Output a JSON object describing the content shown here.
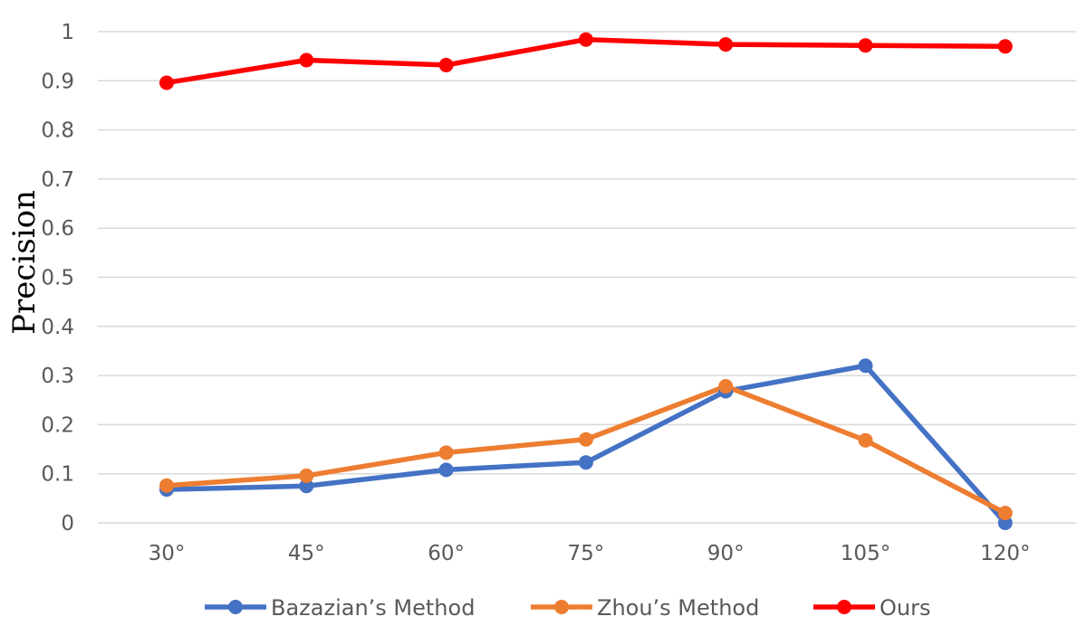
{
  "chart_data": {
    "type": "line",
    "title": "",
    "xlabel": "",
    "ylabel": "Precision",
    "categories": [
      "30°",
      "45°",
      "60°",
      "75°",
      "90°",
      "105°",
      "120°"
    ],
    "ylim": [
      0,
      1
    ],
    "yticks": [
      "0",
      "0.1",
      "0.2",
      "0.3",
      "0.4",
      "0.5",
      "0.6",
      "0.7",
      "0.8",
      "0.9",
      "1"
    ],
    "grid": true,
    "legend_position": "bottom",
    "series": [
      {
        "name": "Bazazian’s Method",
        "color": "#4472C4",
        "values": [
          0.068,
          0.075,
          0.108,
          0.123,
          0.268,
          0.32,
          0.0
        ]
      },
      {
        "name": "Zhou’s Method",
        "color": "#ED7D31",
        "values": [
          0.076,
          0.096,
          0.143,
          0.17,
          0.278,
          0.168,
          0.02
        ]
      },
      {
        "name": "Ours",
        "color": "#FF0000",
        "values": [
          0.896,
          0.942,
          0.932,
          0.984,
          0.974,
          0.972,
          0.97
        ]
      }
    ]
  }
}
